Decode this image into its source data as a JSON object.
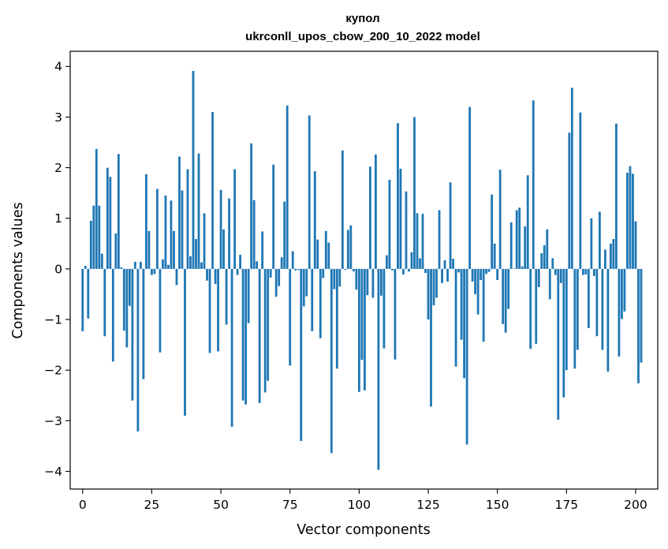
{
  "chart_data": {
    "type": "bar",
    "title": "купол",
    "subtitle": "ukrconll_upos_cbow_200_10_2022 model",
    "xlabel": "Vector components",
    "ylabel": "Components values",
    "xlim": [
      -4.5,
      208
    ],
    "ylim": [
      -4.35,
      4.3
    ],
    "xticks": [
      0,
      25,
      50,
      75,
      100,
      125,
      150,
      175,
      200
    ],
    "yticks": [
      4,
      3,
      2,
      1,
      0,
      -1,
      -2,
      -3,
      -4
    ],
    "ytick_labels": [
      "4",
      "3",
      "2",
      "1",
      "0",
      "−1",
      "−2",
      "−3",
      "−4"
    ],
    "grid": false,
    "bar_color": "#1f77b4",
    "values": [
      -1.23,
      0.06,
      -0.98,
      0.95,
      1.25,
      2.37,
      1.25,
      0.3,
      -1.33,
      2.0,
      1.82,
      -1.83,
      0.7,
      2.27,
      0.03,
      -1.22,
      -1.55,
      -0.73,
      -2.6,
      0.14,
      -3.21,
      0.14,
      -2.18,
      1.87,
      0.75,
      -0.12,
      -0.1,
      1.58,
      -1.65,
      0.19,
      1.45,
      0.08,
      1.35,
      0.75,
      -0.32,
      2.22,
      1.55,
      -2.9,
      1.97,
      0.25,
      3.91,
      0.59,
      2.28,
      0.13,
      1.1,
      -0.23,
      -1.66,
      3.1,
      -0.3,
      -1.63,
      1.56,
      0.78,
      -1.1,
      1.39,
      -3.12,
      1.97,
      -0.12,
      0.28,
      -2.6,
      -2.68,
      -1.07,
      2.48,
      1.36,
      0.15,
      -2.65,
      0.74,
      -2.44,
      -2.21,
      -0.17,
      2.06,
      -0.55,
      -0.34,
      0.23,
      1.33,
      3.23,
      -1.91,
      0.35,
      -0.03,
      -0.02,
      -3.4,
      -0.74,
      -0.54,
      3.03,
      -1.23,
      1.93,
      0.58,
      -1.37,
      -0.18,
      0.75,
      0.52,
      -3.64,
      -0.4,
      -1.97,
      -0.35,
      2.34,
      -0.02,
      0.77,
      0.86,
      -0.05,
      -0.41,
      -2.43,
      -1.8,
      -2.4,
      -0.52,
      2.02,
      -0.57,
      2.26,
      -3.97,
      -0.53,
      -1.57,
      0.27,
      1.76,
      -0.03,
      -1.79,
      2.88,
      1.98,
      -0.11,
      1.53,
      -0.05,
      0.33,
      3.0,
      1.1,
      0.21,
      1.09,
      -0.08,
      -1.0,
      -2.72,
      -0.72,
      -0.57,
      1.16,
      -0.28,
      0.17,
      -0.25,
      1.71,
      0.2,
      -1.93,
      -0.07,
      -1.4,
      -2.16,
      -3.47,
      3.2,
      -0.25,
      -0.5,
      -0.9,
      -0.22,
      -1.44,
      -0.1,
      -0.06,
      1.47,
      0.5,
      -0.22,
      1.96,
      -1.09,
      -1.26,
      -0.79,
      0.92,
      0.01,
      1.16,
      1.21,
      0.05,
      0.84,
      1.85,
      -1.58,
      3.33,
      -1.48,
      -0.36,
      0.31,
      0.47,
      0.78,
      -0.6,
      0.21,
      -0.12,
      -2.98,
      -0.28,
      -2.54,
      -2.0,
      2.69,
      3.58,
      -1.97,
      -1.6,
      3.09,
      -0.12,
      -0.11,
      -1.17,
      1.0,
      -0.14,
      -1.33,
      1.13,
      -1.6,
      0.38,
      -2.03,
      0.5,
      0.59,
      2.87,
      -1.73,
      -0.99,
      -0.84,
      1.9,
      2.03,
      1.88,
      0.94,
      -2.26,
      -1.85
    ]
  }
}
